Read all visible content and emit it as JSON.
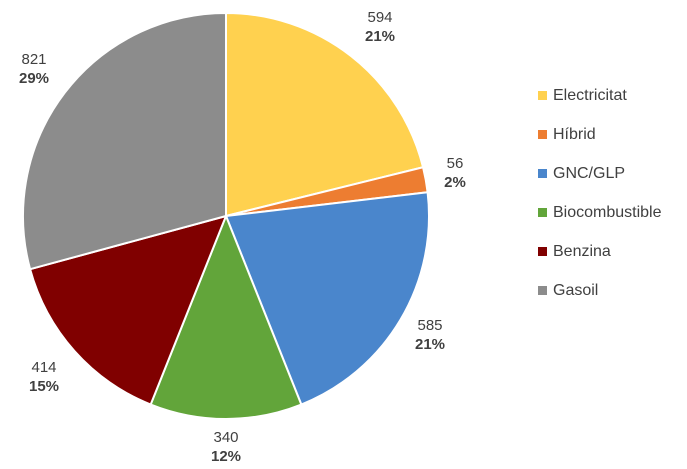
{
  "chart_data": {
    "type": "pie",
    "title": "",
    "legend_position": "right",
    "slices": [
      {
        "name": "Electricitat",
        "value": 594,
        "percent": "21%",
        "color": "#FFD14F"
      },
      {
        "name": "Híbrid",
        "value": 56,
        "percent": "2%",
        "color": "#ED7D31"
      },
      {
        "name": "GNC/GLP",
        "value": 585,
        "percent": "21%",
        "color": "#4A86CC"
      },
      {
        "name": "Biocombustible",
        "value": 340,
        "percent": "12%",
        "color": "#62A53A"
      },
      {
        "name": "Benzina",
        "value": 414,
        "percent": "15%",
        "color": "#800000"
      },
      {
        "name": "Gasoil",
        "value": 821,
        "percent": "29%",
        "color": "#8C8C8C"
      }
    ]
  }
}
